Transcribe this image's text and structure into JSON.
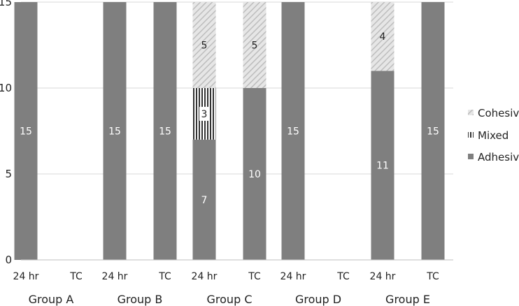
{
  "chart_data": {
    "type": "bar",
    "stacked": true,
    "groups": [
      "Group A",
      "Group B",
      "Group C",
      "Group D",
      "Group E"
    ],
    "subcategories": [
      "24 hr",
      "TC"
    ],
    "y_ticks": [
      "0",
      "5",
      "10",
      "15"
    ],
    "ylim": [
      0,
      15
    ],
    "grid": true,
    "legend_position": "right",
    "series": [
      {
        "name": "Adhesive",
        "color": "#7f7f7f",
        "pattern": "solid",
        "values": [
          15,
          null,
          15,
          15,
          7,
          10,
          15,
          null,
          11,
          15
        ],
        "labels": [
          "15",
          "",
          "15",
          "15",
          "7",
          "10",
          "15",
          "",
          "11",
          "15"
        ]
      },
      {
        "name": "Mixed",
        "color": "#333333",
        "pattern": "vertical-stripes",
        "values": [
          0,
          null,
          0,
          0,
          3,
          0,
          0,
          null,
          0,
          0
        ],
        "labels": [
          "",
          "",
          "",
          "",
          "3",
          "",
          "",
          "",
          "",
          ""
        ]
      },
      {
        "name": "Cohesive",
        "color": "#cfcfcf",
        "pattern": "diagonal-hatch",
        "values": [
          0,
          null,
          0,
          0,
          5,
          5,
          0,
          null,
          4,
          0
        ],
        "labels": [
          "",
          "",
          "",
          "",
          "5",
          "5",
          "",
          "",
          "4",
          ""
        ]
      }
    ],
    "legend_order": [
      "Cohesive",
      "Mixed",
      "Adhesive"
    ]
  }
}
